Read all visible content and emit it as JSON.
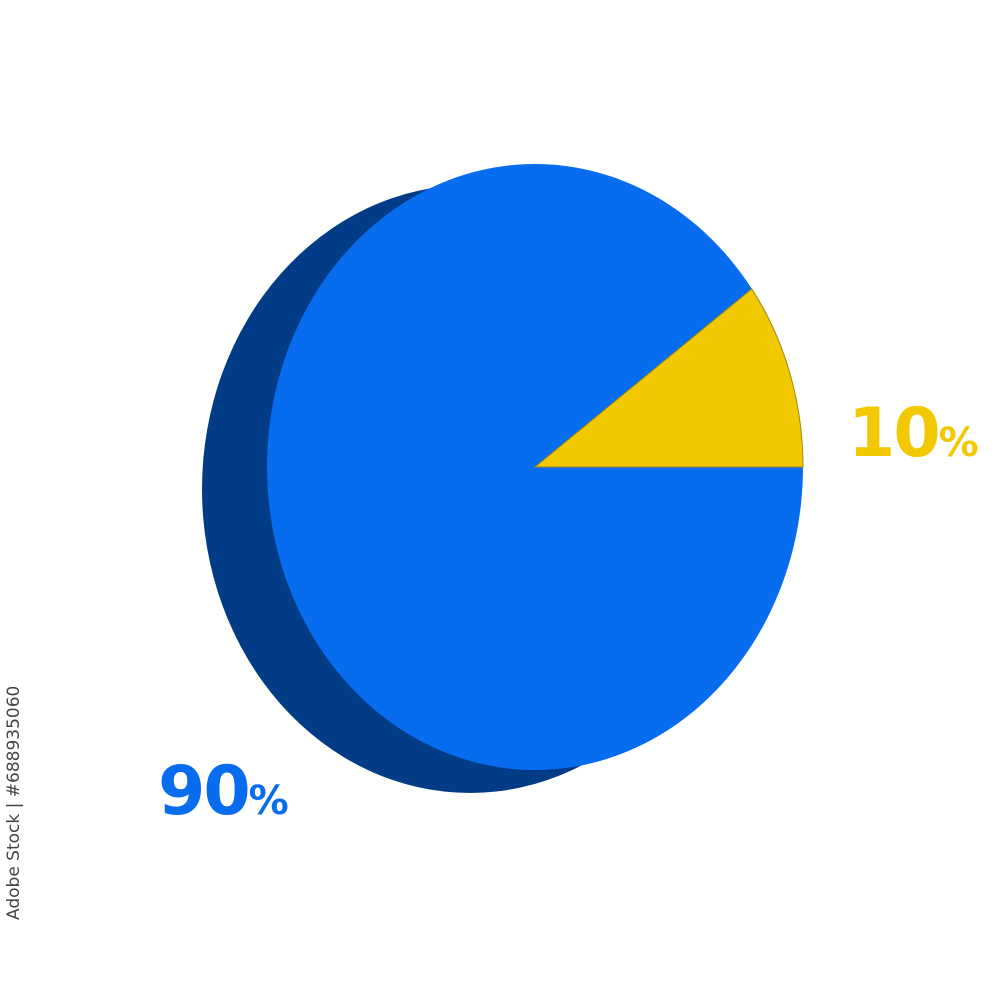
{
  "chart_data": {
    "type": "pie",
    "style": "3d",
    "values": [
      90,
      10
    ],
    "unit": "%",
    "colors": [
      "#086cee",
      "#f2c800"
    ],
    "shadow_color": "#033c86",
    "legend": "none"
  },
  "watermark": "Adobe Stock | #688935060"
}
